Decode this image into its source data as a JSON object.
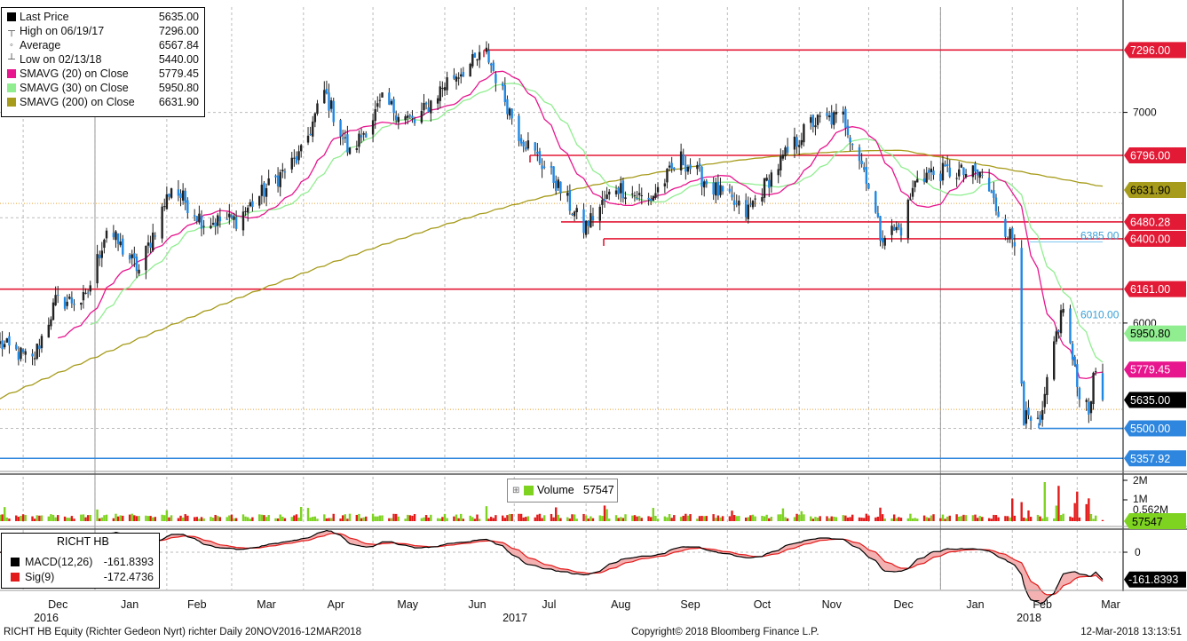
{
  "legend": {
    "items": [
      {
        "label": "Last Price",
        "value": "5635.00",
        "color": "#000000",
        "kind": "square"
      },
      {
        "label": "High on 06/19/17",
        "value": "7296.00",
        "kind": "high"
      },
      {
        "label": "Average",
        "value": "6567.84",
        "kind": "avg"
      },
      {
        "label": "Low on 02/13/18",
        "value": "5440.00",
        "kind": "low"
      },
      {
        "label": "SMAVG (20)  on Close",
        "value": "5779.45",
        "color": "#e8168e",
        "kind": "square"
      },
      {
        "label": "SMAVG (30)  on Close",
        "value": "5950.80",
        "color": "#90ee90",
        "kind": "square"
      },
      {
        "label": "SMAVG (200)  on Close",
        "value": "6631.90",
        "color": "#a69b1a",
        "kind": "square"
      }
    ]
  },
  "right_axis": {
    "ticks": [
      "7000",
      "6000"
    ],
    "tags": [
      {
        "text": "7296.00",
        "bg": "#e31a35",
        "fg": "#ffffff"
      },
      {
        "text": "6796.00",
        "bg": "#e31a35",
        "fg": "#ffffff"
      },
      {
        "text": "6631.90",
        "bg": "#a69b1a",
        "fg": "#000000"
      },
      {
        "text": "6480.28",
        "bg": "#e31a35",
        "fg": "#ffffff"
      },
      {
        "text": "6400.00",
        "bg": "#e31a35",
        "fg": "#ffffff"
      },
      {
        "text": "6161.00",
        "bg": "#e31a35",
        "fg": "#ffffff"
      },
      {
        "text": "5950.80",
        "bg": "#90ee90",
        "fg": "#000000"
      },
      {
        "text": "5779.45",
        "bg": "#e8168e",
        "fg": "#ffffff"
      },
      {
        "text": "5635.00",
        "bg": "#000000",
        "fg": "#ffffff"
      },
      {
        "text": "5500.00",
        "bg": "#2e86de",
        "fg": "#ffffff"
      },
      {
        "text": "5357.92",
        "bg": "#2e86de",
        "fg": "#ffffff"
      }
    ],
    "annotations": [
      "6385.00",
      "6010.00"
    ]
  },
  "volume": {
    "label": "Volume",
    "value": "57547",
    "ticks": [
      "2M",
      "1M",
      "0.562M"
    ],
    "tag": "57547"
  },
  "macd": {
    "title": "RICHT HB",
    "items": [
      {
        "label": "MACD(12,26)",
        "value": "-161.8393",
        "color": "#000000"
      },
      {
        "label": "Sig(9)",
        "value": "-172.4736",
        "color": "#e31a1a"
      }
    ],
    "zero_tick": "0",
    "tag": "-161.8393"
  },
  "x_axis": {
    "months": [
      {
        "label": "Dec",
        "year": "2016"
      },
      {
        "label": "Jan"
      },
      {
        "label": "Feb"
      },
      {
        "label": "Mar"
      },
      {
        "label": "Apr"
      },
      {
        "label": "May"
      },
      {
        "label": "Jun"
      },
      {
        "label": "Jul",
        "year": "2017"
      },
      {
        "label": "Aug"
      },
      {
        "label": "Sep"
      },
      {
        "label": "Oct"
      },
      {
        "label": "Nov"
      },
      {
        "label": "Dec"
      },
      {
        "label": "Jan"
      },
      {
        "label": "Feb",
        "year": "2018"
      },
      {
        "label": "Mar"
      }
    ]
  },
  "footer": {
    "left": "RICHT HB Equity (Richter Gedeon Nyrt) richter   Daily 20NOV2016-12MAR2018",
    "center": "Copyright© 2018 Bloomberg Finance L.P.",
    "right": "12-Mar-2018 13:13:51"
  },
  "chart_data": {
    "type": "candlestick",
    "ylim": [
      5300,
      7400
    ],
    "horizontal_levels": [
      {
        "value": 7296,
        "color": "#e31a35"
      },
      {
        "value": 6796,
        "color": "#e31a35"
      },
      {
        "value": 6480.28,
        "color": "#e31a35"
      },
      {
        "value": 6400,
        "color": "#e31a35"
      },
      {
        "value": 6161,
        "color": "#e31a35"
      },
      {
        "value": 5500,
        "color": "#2e86de"
      },
      {
        "value": 5357.92,
        "color": "#2e86de"
      }
    ],
    "price_path": [
      [
        "2016-11-21",
        5900
      ],
      [
        "2016-12-05",
        5820
      ],
      [
        "2016-12-15",
        6100
      ],
      [
        "2016-12-28",
        6110
      ],
      [
        "2017-01-06",
        6450
      ],
      [
        "2017-01-20",
        6250
      ],
      [
        "2017-02-03",
        6650
      ],
      [
        "2017-02-17",
        6480
      ],
      [
        "2017-03-03",
        6490
      ],
      [
        "2017-03-17",
        6650
      ],
      [
        "2017-03-31",
        6800
      ],
      [
        "2017-04-10",
        7100
      ],
      [
        "2017-04-21",
        6800
      ],
      [
        "2017-05-05",
        7050
      ],
      [
        "2017-05-19",
        6950
      ],
      [
        "2017-06-02",
        7150
      ],
      [
        "2017-06-19",
        7280
      ],
      [
        "2017-07-03",
        6900
      ],
      [
        "2017-07-17",
        6700
      ],
      [
        "2017-07-31",
        6450
      ],
      [
        "2017-08-14",
        6650
      ],
      [
        "2017-08-28",
        6580
      ],
      [
        "2017-09-11",
        6780
      ],
      [
        "2017-09-25",
        6640
      ],
      [
        "2017-10-09",
        6520
      ],
      [
        "2017-10-23",
        6750
      ],
      [
        "2017-11-06",
        6950
      ],
      [
        "2017-11-20",
        6980
      ],
      [
        "2017-11-30",
        6700
      ],
      [
        "2017-12-06",
        6420
      ],
      [
        "2017-12-15",
        6450
      ],
      [
        "2017-12-22",
        6700
      ],
      [
        "2018-01-05",
        6720
      ],
      [
        "2018-01-19",
        6700
      ],
      [
        "2018-01-29",
        6450
      ],
      [
        "2018-02-02",
        6380
      ],
      [
        "2018-02-06",
        5550
      ],
      [
        "2018-02-13",
        5500
      ],
      [
        "2018-02-19",
        5900
      ],
      [
        "2018-02-23",
        6080
      ],
      [
        "2018-03-01",
        5700
      ],
      [
        "2018-03-06",
        5600
      ],
      [
        "2018-03-09",
        5780
      ],
      [
        "2018-03-12",
        5635
      ]
    ],
    "high": {
      "date": "2017-06-19",
      "value": 7296.0
    },
    "low": {
      "date": "2018-02-13",
      "value": 5440.0
    },
    "last": 5635.0,
    "average": 6567.84,
    "sma20_last": 5779.45,
    "sma30_last": 5950.8,
    "sma200_last": 6631.9,
    "volume_last": 57547,
    "macd_last": -161.8393,
    "signal_last": -172.4736
  }
}
